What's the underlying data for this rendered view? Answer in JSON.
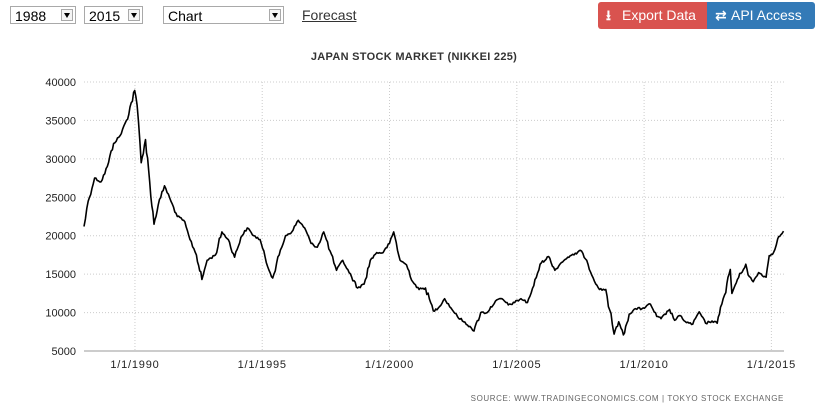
{
  "toolbar": {
    "start_year": "1988",
    "end_year": "2015",
    "view": "Chart",
    "forecast_label": "Forecast",
    "export_label": "Export Data",
    "api_label": "API Access",
    "export_color": "#d9534f",
    "api_color": "#337ab7",
    "export_icon": "download-icon",
    "api_icon": "transfer-arrows-icon"
  },
  "chart_data": {
    "type": "line",
    "title": "JAPAN STOCK MARKET (NIKKEI 225)",
    "source": "SOURCE: WWW.TRADINGECONOMICS.COM | TOKYO STOCK EXCHANGE",
    "xlabel": "",
    "ylabel": "",
    "ylim": [
      5000,
      40000
    ],
    "xlim": [
      "1988-01-01",
      "2015-07-01"
    ],
    "yticks": [
      5000,
      10000,
      15000,
      20000,
      25000,
      30000,
      35000,
      40000
    ],
    "xticks": [
      {
        "date": "1990-01-01",
        "label": "1/1/1990"
      },
      {
        "date": "1995-01-01",
        "label": "1/1/1995"
      },
      {
        "date": "2000-01-01",
        "label": "1/1/2000"
      },
      {
        "date": "2005-01-01",
        "label": "1/1/2005"
      },
      {
        "date": "2010-01-01",
        "label": "1/1/2010"
      },
      {
        "date": "2015-01-01",
        "label": "1/1/2015"
      }
    ],
    "grid": true,
    "line_color": "#000000",
    "series": [
      {
        "x": [
          "1988-01-01",
          "1988-03-01",
          "1988-06-01",
          "1988-09-01",
          "1988-12-01",
          "1989-03-01",
          "1989-06-01",
          "1989-09-01",
          "1989-12-29",
          "1990-02-01",
          "1990-04-01",
          "1990-06-01",
          "1990-08-01",
          "1990-10-01",
          "1990-12-01",
          "1991-03-01",
          "1991-06-01",
          "1991-09-01",
          "1991-12-01",
          "1992-03-01",
          "1992-06-01",
          "1992-08-18",
          "1992-11-01",
          "1993-03-01",
          "1993-06-01",
          "1993-09-01",
          "1993-12-01",
          "1994-03-01",
          "1994-06-01",
          "1994-09-01",
          "1994-12-01",
          "1995-03-01",
          "1995-06-01",
          "1995-09-01",
          "1995-12-01",
          "1996-03-01",
          "1996-06-01",
          "1996-09-01",
          "1996-12-01",
          "1997-03-01",
          "1997-06-01",
          "1997-09-01",
          "1997-12-01",
          "1998-03-01",
          "1998-06-01",
          "1998-10-01",
          "1999-01-01",
          "1999-04-01",
          "1999-07-01",
          "1999-10-01",
          "2000-01-01",
          "2000-03-01",
          "2000-06-01",
          "2000-09-01",
          "2000-12-01",
          "2001-03-01",
          "2001-06-01",
          "2001-09-20",
          "2001-12-01",
          "2002-03-01",
          "2002-06-01",
          "2002-09-01",
          "2002-12-01",
          "2003-03-01",
          "2003-04-28",
          "2003-08-01",
          "2003-11-01",
          "2004-03-01",
          "2004-06-01",
          "2004-09-01",
          "2004-12-01",
          "2005-03-01",
          "2005-06-01",
          "2005-09-01",
          "2005-12-01",
          "2006-04-01",
          "2006-07-01",
          "2006-10-01",
          "2007-01-01",
          "2007-04-01",
          "2007-07-01",
          "2007-10-01",
          "2008-01-01",
          "2008-04-01",
          "2008-07-01",
          "2008-10-01",
          "2008-10-28",
          "2009-01-01",
          "2009-03-10",
          "2009-06-01",
          "2009-09-01",
          "2009-12-01",
          "2010-04-01",
          "2010-07-01",
          "2010-09-01",
          "2011-01-01",
          "2011-03-15",
          "2011-06-01",
          "2011-09-01",
          "2011-12-01",
          "2012-03-01",
          "2012-06-01",
          "2012-09-01",
          "2012-11-15",
          "2013-01-01",
          "2013-03-01",
          "2013-05-22",
          "2013-06-13",
          "2013-09-01",
          "2013-12-30",
          "2014-02-01",
          "2014-04-15",
          "2014-07-01",
          "2014-10-17",
          "2014-12-01",
          "2015-02-01",
          "2015-04-01",
          "2015-05-15",
          "2015-06-24"
        ],
        "y": [
          21200,
          24500,
          27500,
          27000,
          29000,
          32000,
          33000,
          35000,
          38900,
          37000,
          29500,
          32500,
          27000,
          21500,
          24000,
          26500,
          24500,
          22500,
          22000,
          19500,
          17500,
          14300,
          16800,
          17500,
          20500,
          19500,
          17200,
          19800,
          21000,
          20000,
          19500,
          16500,
          14500,
          17500,
          20000,
          20500,
          22000,
          21000,
          19000,
          18500,
          20500,
          18000,
          15500,
          16800,
          15200,
          13200,
          13700,
          16800,
          17800,
          17800,
          19000,
          20500,
          16800,
          16200,
          14000,
          13000,
          13200,
          10200,
          10600,
          11800,
          10600,
          9500,
          8800,
          8200,
          7600,
          10000,
          10000,
          11500,
          11800,
          11000,
          11300,
          11800,
          11300,
          13500,
          16300,
          17300,
          15500,
          16500,
          17200,
          17500,
          18100,
          16800,
          14500,
          13000,
          13000,
          8500,
          7200,
          8800,
          7100,
          9800,
          10500,
          10500,
          11100,
          9500,
          9200,
          10400,
          9000,
          9600,
          8700,
          8500,
          10100,
          8600,
          8900,
          8600,
          10700,
          12300,
          15600,
          12500,
          14300,
          16300,
          14900,
          14000,
          15200,
          14600,
          17400,
          17800,
          19600,
          20100,
          20600
        ]
      }
    ]
  }
}
